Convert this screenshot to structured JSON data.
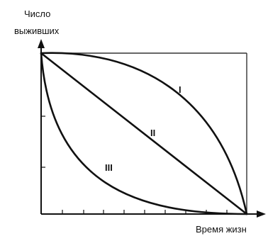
{
  "y_axis_title_line1": "Число",
  "y_axis_title_line2": "выживших",
  "x_axis_title": "Время жизн",
  "curve_labels": {
    "I": "I",
    "II": "II",
    "III": "III"
  },
  "ink_color": "#111111",
  "frame_color": "#333333"
}
